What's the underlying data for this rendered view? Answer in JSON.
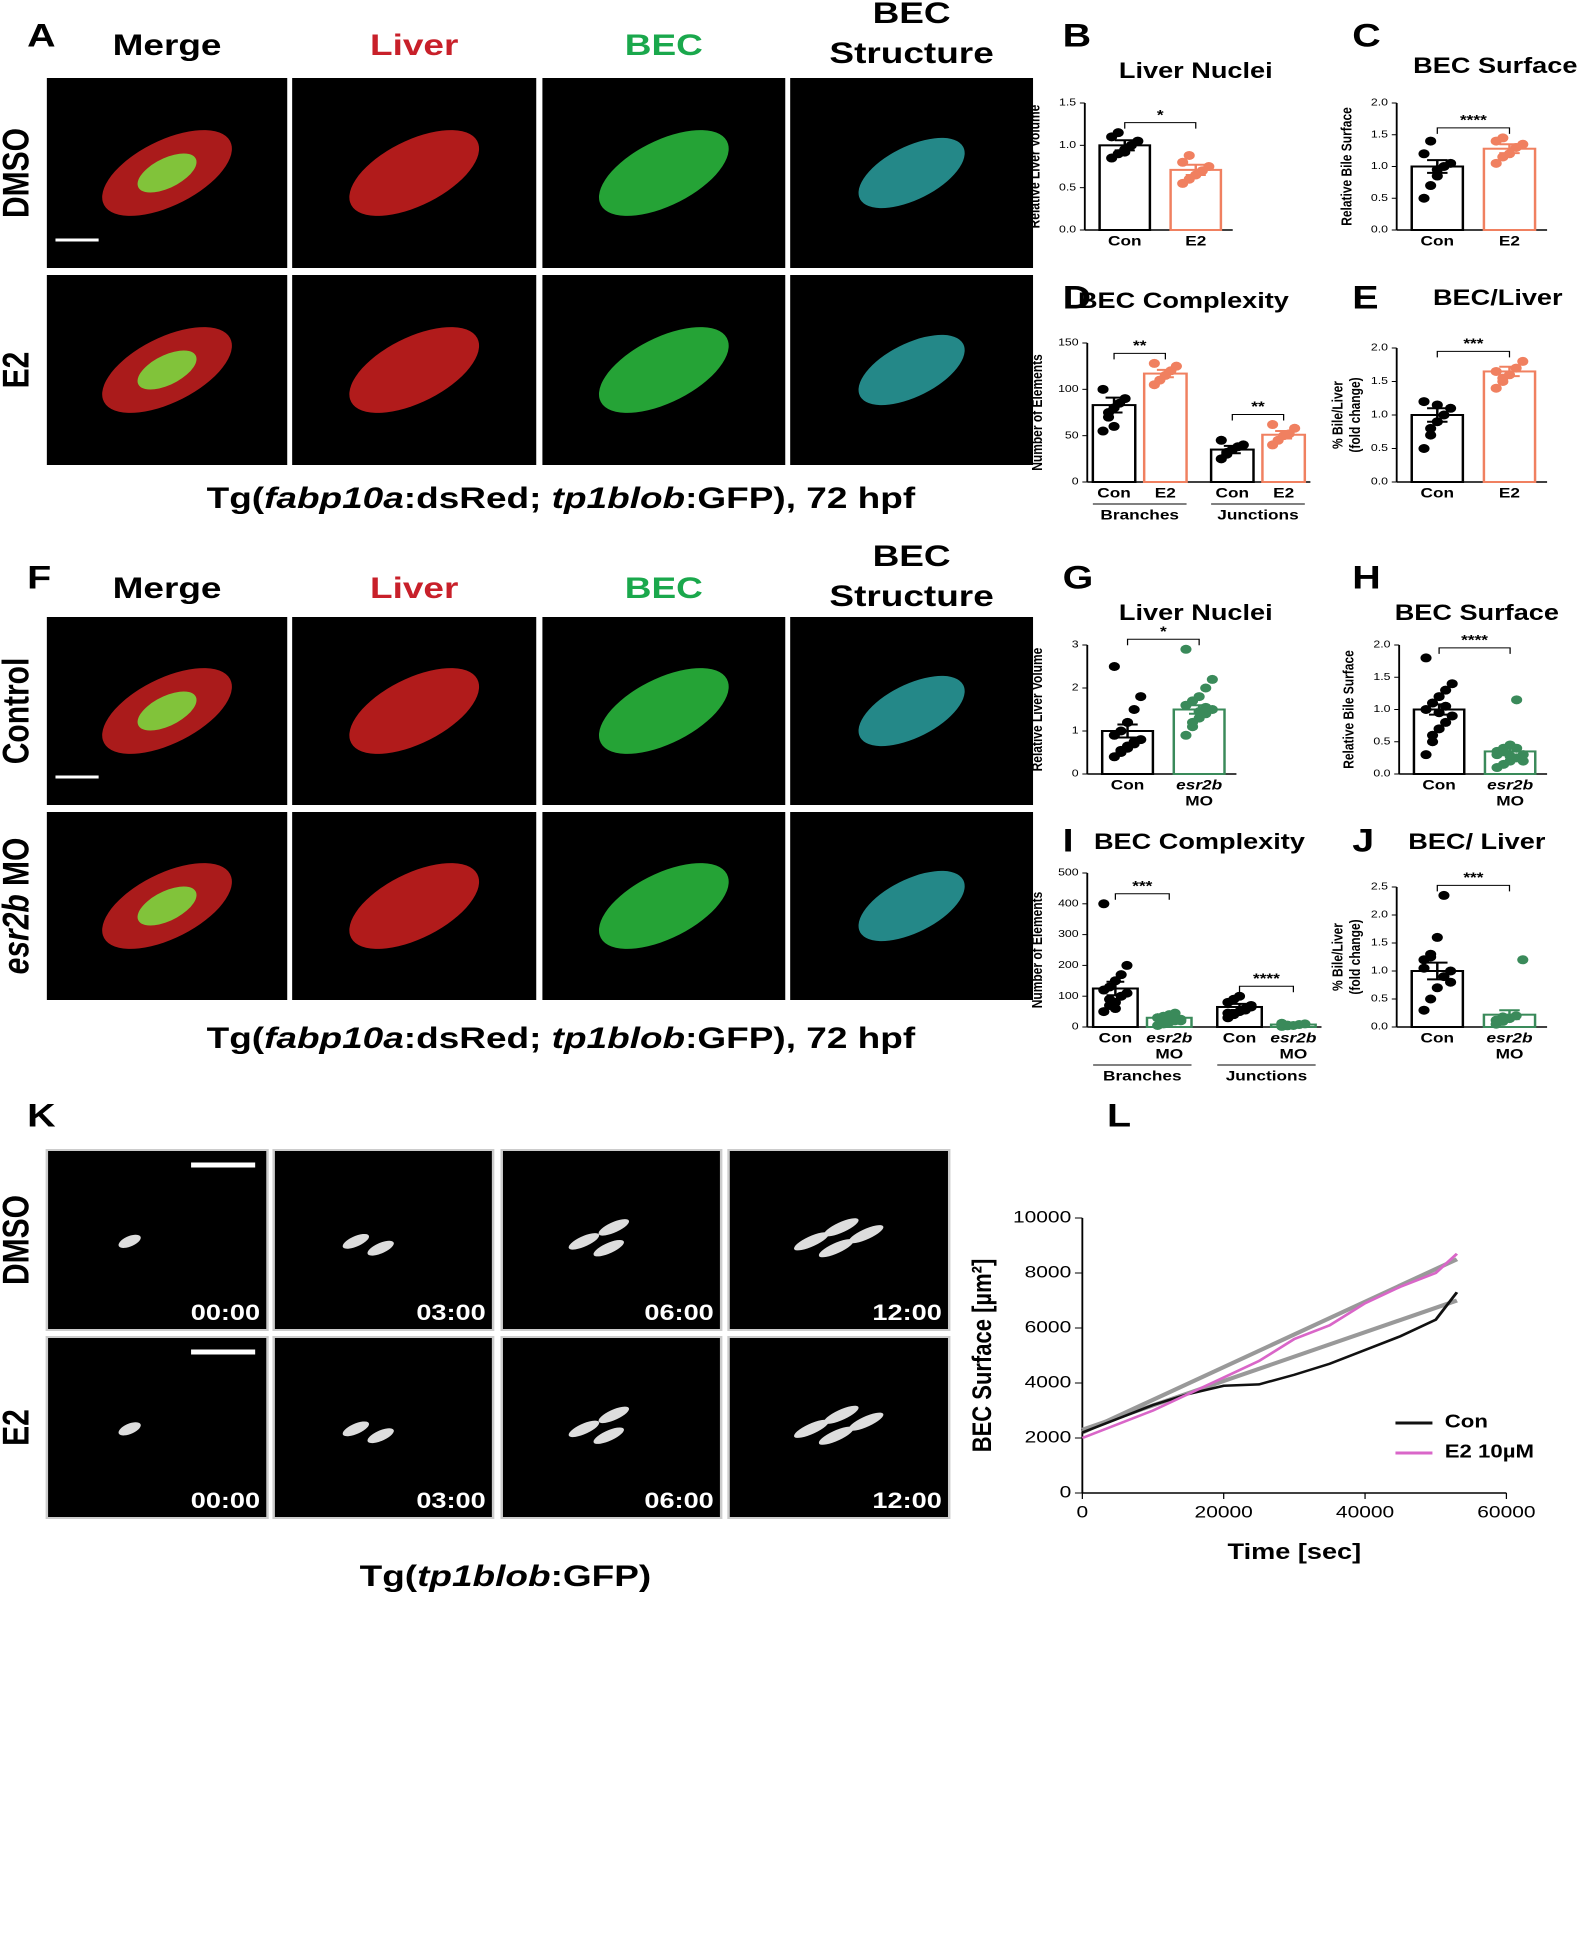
{
  "figure": {
    "panel_labels": [
      "A",
      "F",
      "K"
    ],
    "top": {
      "columns": [
        [
          "Merge"
        ],
        [
          "Liver"
        ],
        [
          "BEC"
        ],
        [
          "BEC",
          "Structure"
        ]
      ],
      "column_colors": [
        "#000000",
        "#c8202a",
        "#1aa84c",
        "#000000"
      ],
      "rows": [
        [
          {
            "text": "DMSO",
            "italic": false
          }
        ],
        [
          {
            "text": "E2",
            "italic": false
          }
        ]
      ],
      "caption": [
        {
          "text": "Tg(",
          "italic": false
        },
        {
          "text": "fabp10a",
          "italic": true
        },
        {
          "text": ":dsRed; ",
          "italic": false
        },
        {
          "text": "tp1blob",
          "italic": true
        },
        {
          "text": ":GFP), 72 hpf",
          "italic": false
        }
      ]
    },
    "middle": {
      "columns": [
        [
          "Merge"
        ],
        [
          "Liver"
        ],
        [
          "BEC"
        ],
        [
          "BEC",
          "Structure"
        ]
      ],
      "column_colors": [
        "#000000",
        "#c8202a",
        "#1aa84c",
        "#000000"
      ],
      "rows": [
        [
          {
            "text": "Control",
            "italic": false
          }
        ],
        [
          {
            "text": "esr2b",
            "italic": true
          },
          {
            "text": " MO",
            "italic": false
          }
        ]
      ],
      "caption": [
        {
          "text": "Tg(",
          "italic": false
        },
        {
          "text": "fabp10a",
          "italic": true
        },
        {
          "text": ":dsRed; ",
          "italic": false
        },
        {
          "text": "tp1blob",
          "italic": true
        },
        {
          "text": ":GFP), 72 hpf",
          "italic": false
        }
      ]
    },
    "bottom": {
      "rows": [
        [
          {
            "text": "DMSO",
            "italic": false
          }
        ],
        [
          {
            "text": "E2",
            "italic": false
          }
        ]
      ],
      "timestamps": [
        "00:00",
        "03:00",
        "06:00",
        "12:00"
      ],
      "caption": [
        {
          "text": "Tg(",
          "italic": false
        },
        {
          "text": "tp1blob",
          "italic": true
        },
        {
          "text": ":GFP)",
          "italic": false
        }
      ]
    }
  },
  "chart_data": [
    {
      "type": "bar",
      "panel": "B",
      "title": "Liver Nuclei",
      "y_label": [
        "Relative Liver Volume"
      ],
      "categories": [
        "Con",
        "E2"
      ],
      "colors": [
        "#000000",
        "#f08060"
      ],
      "values": [
        1.0,
        0.71
      ],
      "errors": [
        0.06,
        0.06
      ],
      "points": [
        [
          0.85,
          0.9,
          0.95,
          1.0,
          1.05,
          1.1,
          1.15,
          0.92
        ],
        [
          0.55,
          0.6,
          0.65,
          0.7,
          0.75,
          0.8,
          0.88
        ]
      ],
      "ylim": [
        0,
        1.5
      ],
      "yticks": [
        {
          "value": 0,
          "label": "0.0"
        },
        0.5,
        {
          "value": 1,
          "label": "1.0"
        },
        1.5
      ],
      "significance": "*"
    },
    {
      "type": "bar",
      "panel": "C",
      "title": "BEC Surface",
      "y_label": [
        "Relative Bile Surface"
      ],
      "categories": [
        "Con",
        "E2"
      ],
      "colors": [
        "#000000",
        "#f08060"
      ],
      "values": [
        1.0,
        1.28
      ],
      "errors": [
        0.1,
        0.07
      ],
      "points": [
        [
          0.5,
          0.7,
          0.95,
          1.0,
          1.05,
          1.2,
          1.4,
          0.85
        ],
        [
          1.05,
          1.15,
          1.2,
          1.3,
          1.35,
          1.4,
          1.45
        ]
      ],
      "ylim": [
        0,
        2
      ],
      "yticks": [
        {
          "value": 0,
          "label": "0.0"
        },
        0.5,
        {
          "value": 1,
          "label": "1.0"
        },
        1.5,
        {
          "value": 2,
          "label": "2.0"
        }
      ],
      "significance": "****"
    },
    {
      "type": "bar",
      "panel": "D",
      "title": "BEC Complexity",
      "y_label": [
        "Number of Elements"
      ],
      "categories": [
        "Con",
        "E2",
        "Con",
        "E2"
      ],
      "groups": [
        "Branches",
        "Junctions"
      ],
      "colors": [
        "#000000",
        "#f08060",
        "#000000",
        "#f08060"
      ],
      "values": [
        83,
        117,
        35,
        51
      ],
      "errors": [
        8,
        4,
        4,
        4
      ],
      "points": [
        [
          55,
          70,
          80,
          85,
          90,
          100,
          75,
          60
        ],
        [
          105,
          110,
          115,
          120,
          125,
          128
        ],
        [
          25,
          30,
          35,
          38,
          40,
          45,
          32
        ],
        [
          40,
          45,
          50,
          52,
          58,
          62
        ]
      ],
      "ylim": [
        0,
        150
      ],
      "yticks": [
        0,
        50,
        100,
        150
      ],
      "significance": [
        "**",
        "**"
      ]
    },
    {
      "type": "bar",
      "panel": "E",
      "title": "BEC/Liver",
      "y_label": [
        "% Bile/Liver",
        "(fold change)"
      ],
      "categories": [
        "Con",
        "E2"
      ],
      "colors": [
        "#000000",
        "#f08060"
      ],
      "values": [
        1.0,
        1.65
      ],
      "errors": [
        0.1,
        0.07
      ],
      "points": [
        [
          0.5,
          0.7,
          0.9,
          1.0,
          1.1,
          1.2,
          0.8,
          1.15
        ],
        [
          1.4,
          1.5,
          1.6,
          1.7,
          1.8,
          1.65,
          1.55
        ]
      ],
      "ylim": [
        0,
        2
      ],
      "yticks": [
        {
          "value": 0,
          "label": "0.0"
        },
        0.5,
        {
          "value": 1,
          "label": "1.0"
        },
        1.5,
        {
          "value": 2,
          "label": "2.0"
        }
      ],
      "significance": "***"
    },
    {
      "type": "bar",
      "panel": "G",
      "title": "Liver Nuclei",
      "y_label": [
        "Relative Liver Volume"
      ],
      "categories": [
        "Con",
        "esr2b"
      ],
      "sublabels": [
        null,
        "MO"
      ],
      "italic_categories": [
        false,
        true
      ],
      "colors": [
        "#000000",
        "#3a8a5a"
      ],
      "values": [
        1.0,
        1.5
      ],
      "errors": [
        0.15,
        0.1
      ],
      "points": [
        [
          0.4,
          0.5,
          0.6,
          0.7,
          0.8,
          0.9,
          1.0,
          1.2,
          1.5,
          1.8,
          2.5,
          0.55,
          0.65,
          0.75
        ],
        [
          0.9,
          1.1,
          1.3,
          1.4,
          1.5,
          1.6,
          1.7,
          1.8,
          2.0,
          2.2,
          2.9,
          1.2,
          1.45,
          1.55
        ]
      ],
      "ylim": [
        0,
        3
      ],
      "yticks": [
        0,
        1,
        2,
        3
      ],
      "significance": "*"
    },
    {
      "type": "bar",
      "panel": "H",
      "title": "BEC Surface",
      "y_label": [
        "Relative Bile Surface"
      ],
      "categories": [
        "Con",
        "esr2b"
      ],
      "sublabels": [
        null,
        "MO"
      ],
      "italic_categories": [
        false,
        true
      ],
      "colors": [
        "#000000",
        "#3a8a5a"
      ],
      "values": [
        1.0,
        0.35
      ],
      "errors": [
        0.08,
        0.06
      ],
      "points": [
        [
          0.3,
          0.5,
          0.7,
          0.8,
          0.9,
          1.0,
          1.1,
          1.2,
          1.3,
          1.4,
          1.8,
          0.6,
          0.95,
          1.05
        ],
        [
          0.1,
          0.15,
          0.2,
          0.25,
          0.3,
          0.35,
          0.4,
          0.45,
          1.15,
          0.2,
          0.3,
          0.35,
          0.28,
          0.4
        ]
      ],
      "ylim": [
        0,
        2
      ],
      "yticks": [
        {
          "value": 0,
          "label": "0.0"
        },
        0.5,
        {
          "value": 1,
          "label": "1.0"
        },
        1.5,
        {
          "value": 2,
          "label": "2.0"
        }
      ],
      "significance": "****"
    },
    {
      "type": "bar",
      "panel": "I",
      "title": "BEC Complexity",
      "y_label": [
        "Number of Elements"
      ],
      "categories": [
        "Con",
        "esr2b",
        "Con",
        "esr2b"
      ],
      "sublabels": [
        null,
        "MO",
        null,
        "MO"
      ],
      "italic_categories": [
        false,
        true,
        false,
        true
      ],
      "groups": [
        "Branches",
        "Junctions"
      ],
      "colors": [
        "#000000",
        "#3a8a5a",
        "#000000",
        "#3a8a5a"
      ],
      "values": [
        125,
        30,
        65,
        8
      ],
      "errors": [
        22,
        5,
        10,
        3
      ],
      "points": [
        [
          50,
          70,
          80,
          100,
          110,
          120,
          130,
          150,
          170,
          200,
          400,
          90,
          60
        ],
        [
          5,
          10,
          15,
          20,
          25,
          30,
          35,
          40,
          45,
          20,
          30,
          25
        ],
        [
          30,
          40,
          50,
          60,
          70,
          80,
          90,
          100,
          55,
          65,
          45
        ],
        [
          2,
          4,
          5,
          8,
          10,
          12,
          6
        ]
      ],
      "ylim": [
        0,
        500
      ],
      "yticks": [
        0,
        100,
        200,
        300,
        400,
        500
      ],
      "significance": [
        "***",
        "****"
      ]
    },
    {
      "type": "bar",
      "panel": "J",
      "title": "BEC/ Liver",
      "y_label": [
        "% Bile/Liver",
        "(fold change)"
      ],
      "categories": [
        "Con",
        "esr2b"
      ],
      "sublabels": [
        null,
        "MO"
      ],
      "italic_categories": [
        false,
        true
      ],
      "colors": [
        "#000000",
        "#3a8a5a"
      ],
      "values": [
        1.0,
        0.22
      ],
      "errors": [
        0.15,
        0.08
      ],
      "points": [
        [
          0.3,
          0.5,
          0.7,
          0.9,
          1.0,
          1.2,
          1.3,
          1.6,
          2.35,
          0.8,
          1.05,
          1.25
        ],
        [
          0.05,
          0.1,
          0.15,
          0.2,
          1.2,
          0.12,
          0.18
        ]
      ],
      "ylim": [
        0,
        2.5
      ],
      "yticks": [
        {
          "value": 0,
          "label": "0.0"
        },
        0.5,
        {
          "value": 1,
          "label": "1.0"
        },
        1.5,
        {
          "value": 2,
          "label": "2.0"
        },
        2.5
      ],
      "significance": "***"
    },
    {
      "type": "line",
      "panel": "L",
      "x_label": "Time [sec]",
      "y_label": "BEC Surface [µm²]",
      "xlim": [
        0,
        60000
      ],
      "xticks": [
        0,
        20000,
        40000,
        60000
      ],
      "ylim": [
        0,
        10000
      ],
      "yticks": [
        0,
        2000,
        4000,
        6000,
        8000,
        10000
      ],
      "legend": "lower right",
      "x": [
        0,
        5000,
        10000,
        15000,
        20000,
        25000,
        30000,
        35000,
        40000,
        45000,
        50000,
        53000
      ],
      "series": [
        {
          "name": "Con",
          "color": "#111111",
          "values": [
            2200,
            2700,
            3200,
            3600,
            3900,
            3950,
            4300,
            4700,
            5200,
            5700,
            6300,
            7300
          ]
        },
        {
          "name": "E2 10µM",
          "color": "#d966c8",
          "values": [
            2000,
            2500,
            3000,
            3600,
            4200,
            4800,
            5600,
            6100,
            6900,
            7500,
            8000,
            8700
          ]
        }
      ],
      "fit_lines": [
        {
          "color": "#999999",
          "x": [
            0,
            53000
          ],
          "y": [
            2300,
            7000
          ]
        },
        {
          "color": "#999999",
          "x": [
            0,
            53000
          ],
          "y": [
            2200,
            8500
          ]
        }
      ]
    }
  ]
}
